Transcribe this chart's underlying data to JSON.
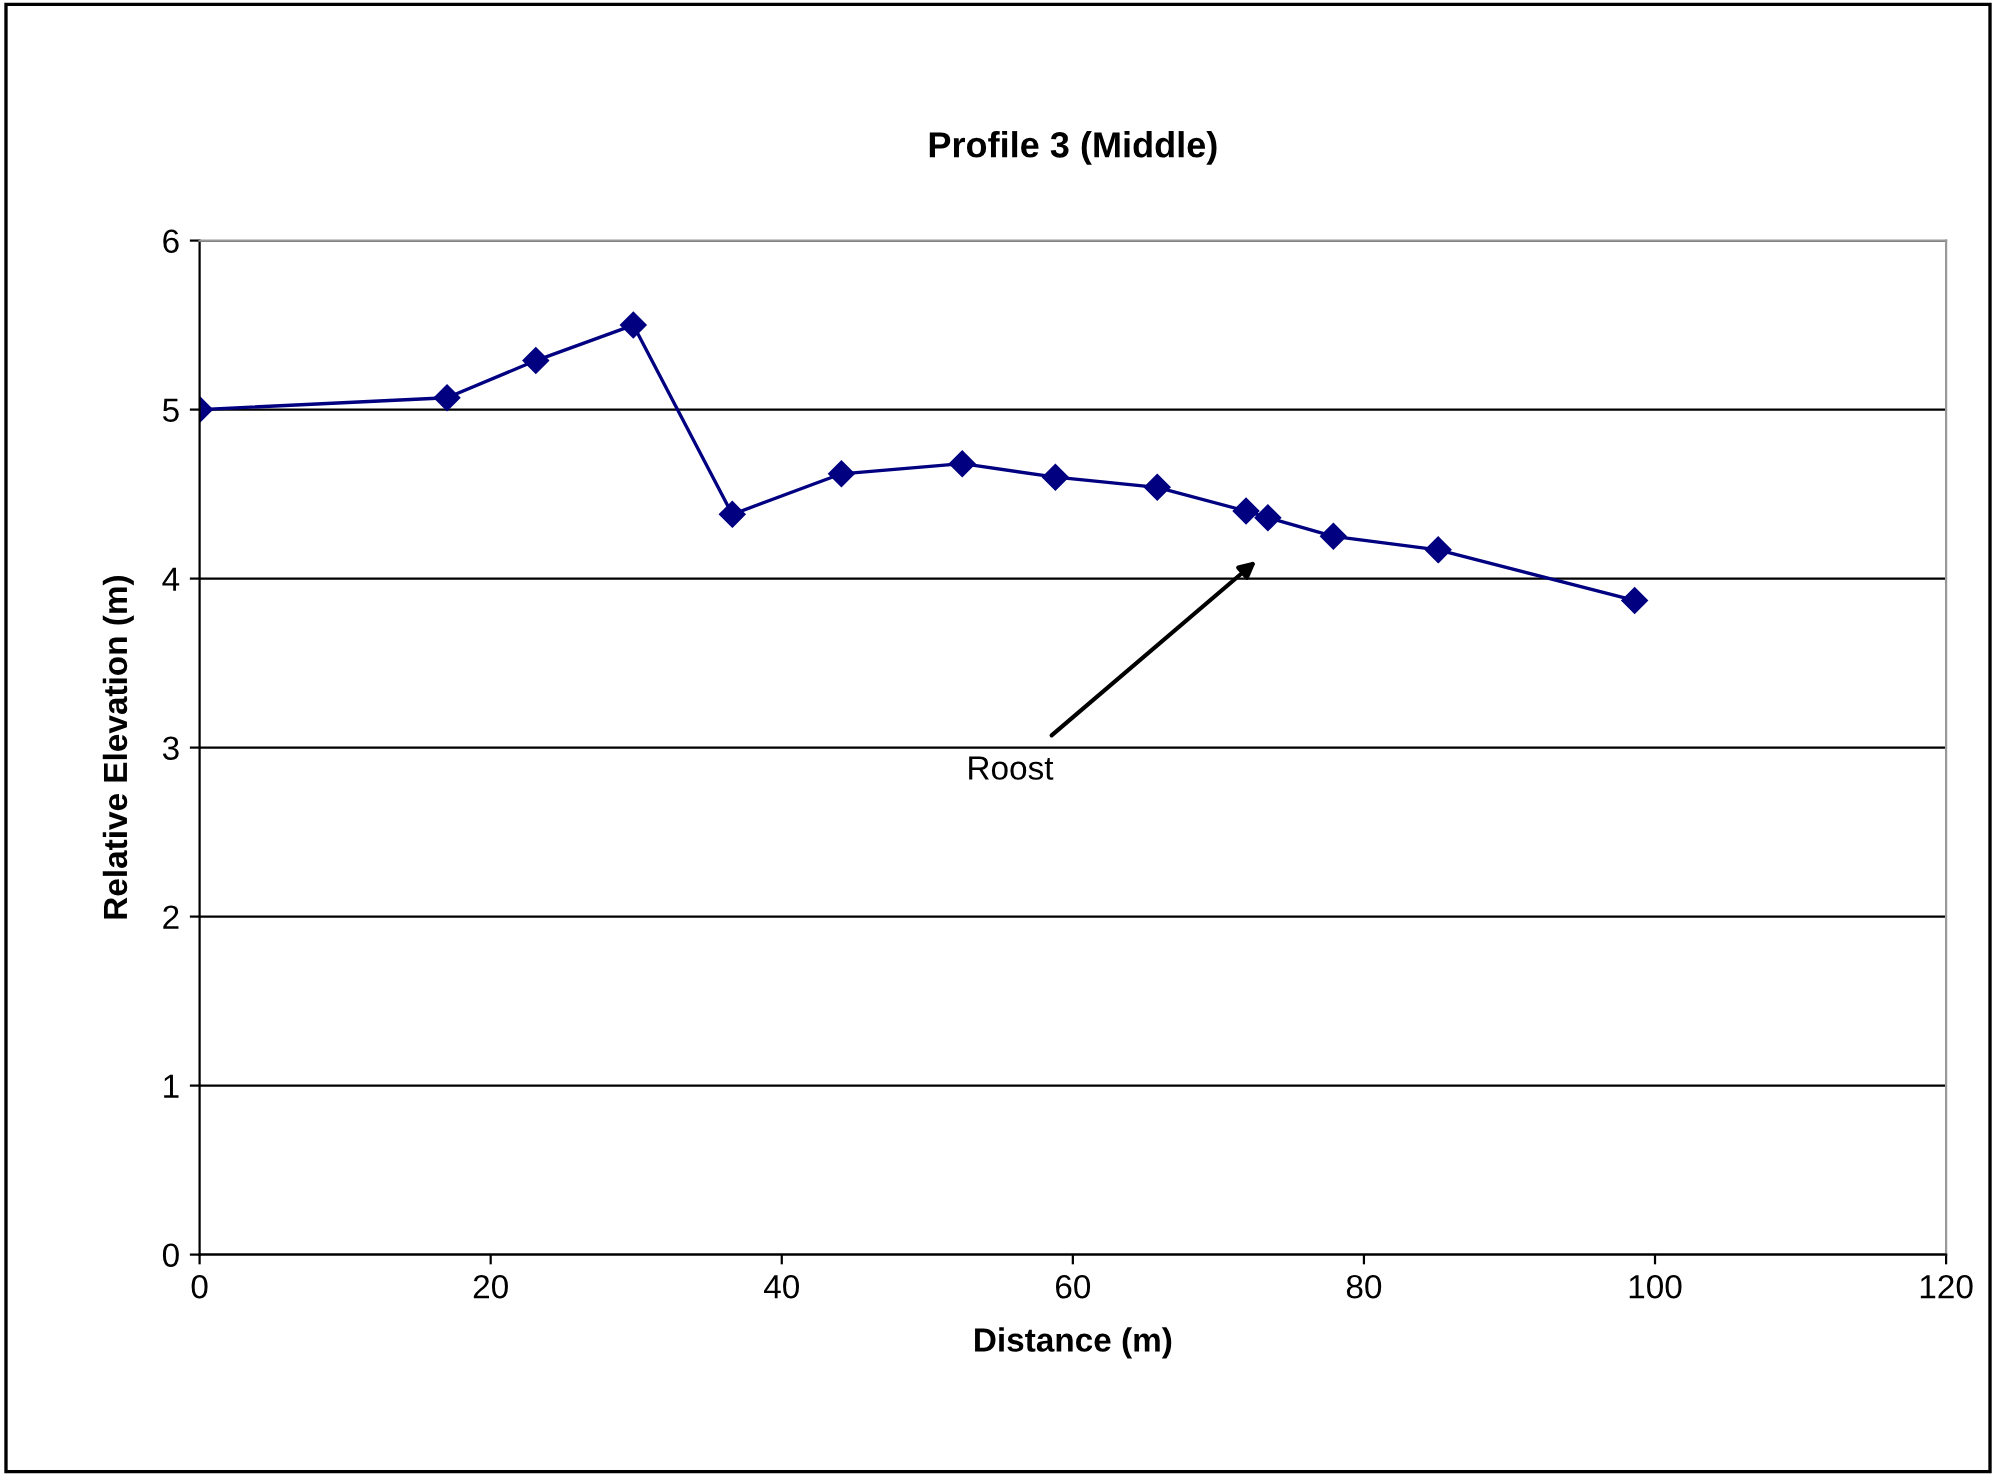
{
  "chart_data": {
    "type": "line",
    "title": "Profile 3 (Middle)",
    "xlabel": "Distance (m)",
    "ylabel": "Relative Elevation (m)",
    "x": [
      0,
      17.0,
      23.1,
      29.8,
      36.6,
      44.1,
      52.4,
      58.8,
      65.8,
      71.9,
      73.4,
      77.9,
      85.1,
      98.6
    ],
    "series": [
      {
        "color": "#000080",
        "values": [
          5.0,
          5.07,
          5.29,
          5.5,
          4.38,
          4.62,
          4.68,
          4.6,
          4.54,
          4.4,
          4.36,
          4.25,
          4.17,
          3.87
        ]
      }
    ],
    "annotations": [
      "Roost"
    ],
    "xlim": [
      0,
      120
    ],
    "xticks": [
      0,
      20,
      40,
      60,
      80,
      100,
      120
    ],
    "ylim": [
      0,
      6
    ],
    "yticks": [
      0,
      1,
      2,
      3,
      4,
      5,
      6
    ],
    "grid": "y",
    "legend": false,
    "marker": "diamond",
    "line_style": "solid"
  }
}
